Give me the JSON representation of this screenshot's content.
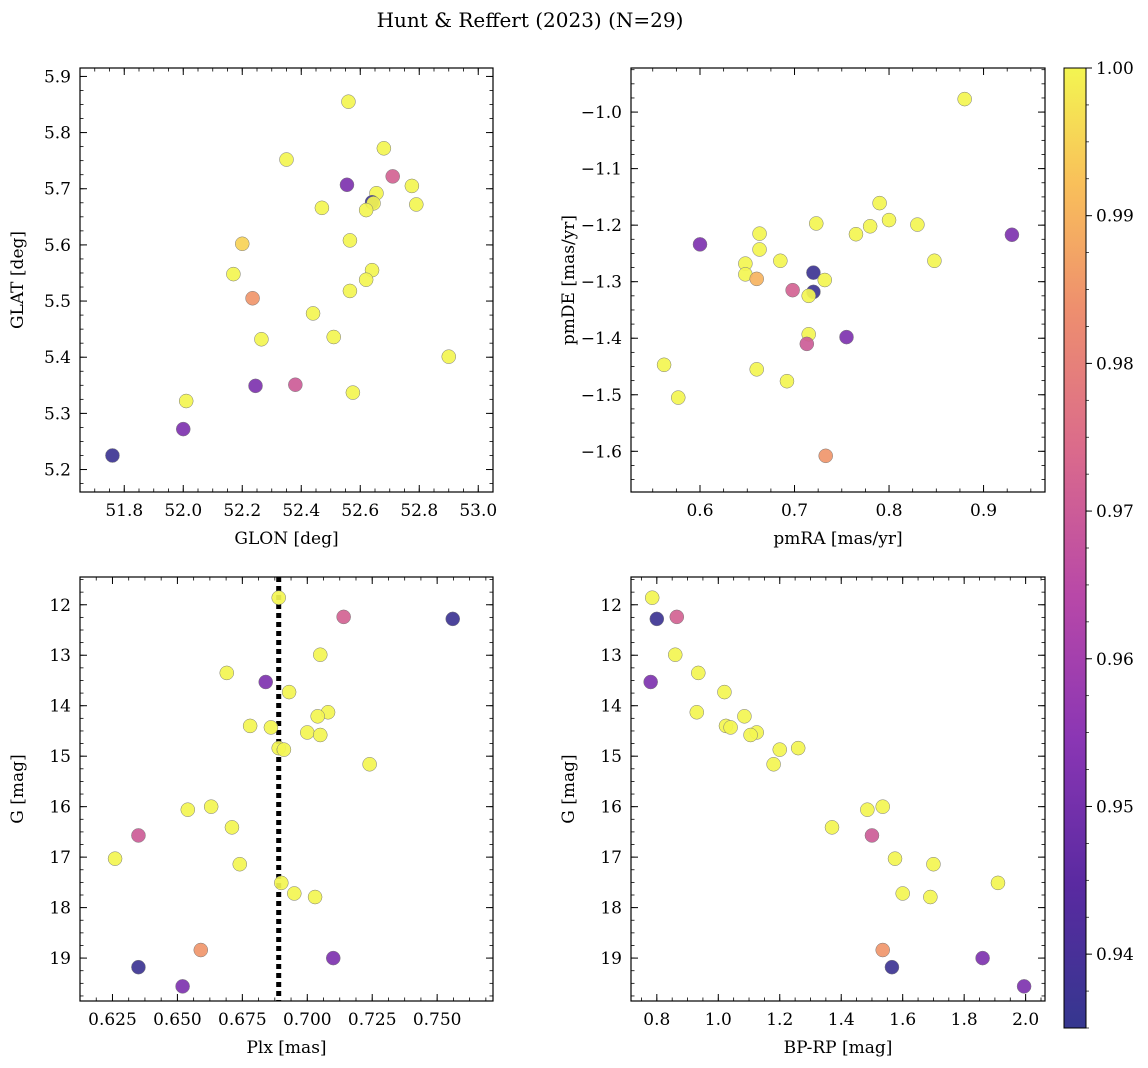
{
  "figure": {
    "title": "Hunt & Reffert (2023) (N=29)"
  },
  "colorbar": {
    "min": 0.935,
    "max": 1.0,
    "ticks": [
      0.94,
      0.95,
      0.96,
      0.97,
      0.98,
      0.99,
      1.0
    ],
    "tick_labels": [
      "0.94",
      "0.95",
      "0.96",
      "0.97",
      "0.98",
      "0.99",
      "1.00"
    ],
    "colormap": "plasma"
  },
  "chart_data": [
    {
      "type": "scatter",
      "id": "glon-glat",
      "xlabel": "GLON [deg]",
      "ylabel": "GLAT [deg]",
      "xlim": [
        51.65,
        53.05
      ],
      "ylim": [
        5.16,
        5.915
      ],
      "xticks": [
        51.8,
        52.0,
        52.2,
        52.4,
        52.6,
        52.8,
        53.0
      ],
      "xtick_labels": [
        "51.8",
        "52.0",
        "52.2",
        "52.4",
        "52.6",
        "52.8",
        "53.0"
      ],
      "yticks": [
        5.2,
        5.3,
        5.4,
        5.5,
        5.6,
        5.7,
        5.8,
        5.9
      ],
      "ytick_labels": [
        "5.2",
        "5.3",
        "5.4",
        "5.5",
        "5.6",
        "5.7",
        "5.8",
        "5.9"
      ],
      "points": [
        [
          52.56,
          5.855,
          1.0
        ],
        [
          52.68,
          5.772,
          1.0
        ],
        [
          52.35,
          5.752,
          1.0
        ],
        [
          52.555,
          5.707,
          0.952
        ],
        [
          52.71,
          5.722,
          0.972
        ],
        [
          52.775,
          5.705,
          1.0
        ],
        [
          52.655,
          5.692,
          1.0
        ],
        [
          52.64,
          5.676,
          0.937
        ],
        [
          52.79,
          5.672,
          1.0
        ],
        [
          52.645,
          5.674,
          1.0
        ],
        [
          52.47,
          5.666,
          1.0
        ],
        [
          52.62,
          5.662,
          1.0
        ],
        [
          52.565,
          5.608,
          1.0
        ],
        [
          52.2,
          5.602,
          0.995
        ],
        [
          52.64,
          5.555,
          1.0
        ],
        [
          52.17,
          5.548,
          1.0
        ],
        [
          52.62,
          5.538,
          1.0
        ],
        [
          52.565,
          5.518,
          1.0
        ],
        [
          52.235,
          5.505,
          0.985
        ],
        [
          52.44,
          5.478,
          1.0
        ],
        [
          52.51,
          5.436,
          1.0
        ],
        [
          52.265,
          5.432,
          1.0
        ],
        [
          52.9,
          5.401,
          1.0
        ],
        [
          52.245,
          5.349,
          0.952
        ],
        [
          52.38,
          5.351,
          0.97
        ],
        [
          52.575,
          5.337,
          1.0
        ],
        [
          52.01,
          5.322,
          1.0
        ],
        [
          52.0,
          5.272,
          0.952
        ],
        [
          51.76,
          5.225,
          0.937
        ]
      ]
    },
    {
      "type": "scatter",
      "id": "pmra-pmde",
      "xlabel": "pmRA [mas/yr]",
      "ylabel": "pmDE [mas/yr]",
      "xlim": [
        0.527,
        0.965
      ],
      "ylim": [
        -1.672,
        -0.922
      ],
      "xticks": [
        0.6,
        0.7,
        0.8,
        0.9
      ],
      "xtick_labels": [
        "0.6",
        "0.7",
        "0.8",
        "0.9"
      ],
      "yticks": [
        -1.6,
        -1.5,
        -1.4,
        -1.3,
        -1.2,
        -1.1,
        -1.0
      ],
      "ytick_labels": [
        "−1.6",
        "−1.5",
        "−1.4",
        "−1.3",
        "−1.2",
        "−1.1",
        "−1.0"
      ],
      "points": [
        [
          0.88,
          -0.977,
          1.0
        ],
        [
          0.79,
          -1.161,
          1.0
        ],
        [
          0.8,
          -1.191,
          1.0
        ],
        [
          0.83,
          -1.199,
          1.0
        ],
        [
          0.78,
          -1.202,
          1.0
        ],
        [
          0.723,
          -1.197,
          1.0
        ],
        [
          0.765,
          -1.216,
          1.0
        ],
        [
          0.93,
          -1.217,
          0.952
        ],
        [
          0.663,
          -1.215,
          1.0
        ],
        [
          0.6,
          -1.234,
          0.952
        ],
        [
          0.663,
          -1.243,
          1.0
        ],
        [
          0.685,
          -1.263,
          1.0
        ],
        [
          0.848,
          -1.263,
          1.0
        ],
        [
          0.648,
          -1.268,
          1.0
        ],
        [
          0.72,
          -1.284,
          0.937
        ],
        [
          0.648,
          -1.287,
          1.0
        ],
        [
          0.66,
          -1.295,
          0.99
        ],
        [
          0.732,
          -1.297,
          1.0
        ],
        [
          0.698,
          -1.315,
          0.972
        ],
        [
          0.72,
          -1.318,
          0.937
        ],
        [
          0.715,
          -1.325,
          1.0
        ],
        [
          0.715,
          -1.393,
          1.0
        ],
        [
          0.755,
          -1.398,
          0.952
        ],
        [
          0.713,
          -1.41,
          0.97
        ],
        [
          0.562,
          -1.447,
          1.0
        ],
        [
          0.66,
          -1.455,
          1.0
        ],
        [
          0.692,
          -1.476,
          1.0
        ],
        [
          0.577,
          -1.505,
          1.0
        ],
        [
          0.733,
          -1.608,
          0.985
        ]
      ]
    },
    {
      "type": "scatter",
      "id": "plx-g",
      "xlabel": "Plx [mas]",
      "ylabel": "G [mag]",
      "xlim": [
        0.6125,
        0.7715
      ],
      "ylim": [
        19.85,
        11.45
      ],
      "yinverted": true,
      "xticks": [
        0.625,
        0.65,
        0.675,
        0.7,
        0.725,
        0.75
      ],
      "xtick_labels": [
        "0.625",
        "0.650",
        "0.675",
        "0.700",
        "0.725",
        "0.750"
      ],
      "yticks": [
        12,
        13,
        14,
        15,
        16,
        17,
        18,
        19
      ],
      "ytick_labels": [
        "12",
        "13",
        "14",
        "15",
        "16",
        "17",
        "18",
        "19"
      ],
      "vline": {
        "x": 0.689,
        "style": "dotted",
        "color": "#000000"
      },
      "points": [
        [
          0.689,
          11.86,
          1.0
        ],
        [
          0.714,
          12.24,
          0.972
        ],
        [
          0.756,
          12.28,
          0.937
        ],
        [
          0.705,
          12.99,
          1.0
        ],
        [
          0.669,
          13.35,
          1.0
        ],
        [
          0.684,
          13.53,
          0.952
        ],
        [
          0.693,
          13.73,
          1.0
        ],
        [
          0.708,
          14.13,
          1.0
        ],
        [
          0.704,
          14.21,
          1.0
        ],
        [
          0.678,
          14.4,
          1.0
        ],
        [
          0.686,
          14.43,
          1.0
        ],
        [
          0.7,
          14.53,
          1.0
        ],
        [
          0.705,
          14.58,
          1.0
        ],
        [
          0.689,
          14.84,
          1.0
        ],
        [
          0.691,
          14.87,
          1.0
        ],
        [
          0.724,
          15.16,
          1.0
        ],
        [
          0.663,
          16.0,
          1.0
        ],
        [
          0.654,
          16.06,
          1.0
        ],
        [
          0.671,
          16.41,
          1.0
        ],
        [
          0.635,
          16.57,
          0.97
        ],
        [
          0.626,
          17.03,
          1.0
        ],
        [
          0.674,
          17.14,
          1.0
        ],
        [
          0.69,
          17.51,
          1.0
        ],
        [
          0.695,
          17.72,
          1.0
        ],
        [
          0.703,
          17.79,
          1.0
        ],
        [
          0.659,
          18.84,
          0.985
        ],
        [
          0.71,
          19.0,
          0.952
        ],
        [
          0.635,
          19.18,
          0.937
        ],
        [
          0.652,
          19.56,
          0.952
        ]
      ]
    },
    {
      "type": "scatter",
      "id": "bprp-g",
      "xlabel": "BP-RP [mag]",
      "ylabel": "G [mag]",
      "xlim": [
        0.716,
        2.063
      ],
      "ylim": [
        19.85,
        11.45
      ],
      "yinverted": true,
      "xticks": [
        0.8,
        1.0,
        1.2,
        1.4,
        1.6,
        1.8,
        2.0
      ],
      "xtick_labels": [
        "0.8",
        "1.0",
        "1.2",
        "1.4",
        "1.6",
        "1.8",
        "2.0"
      ],
      "yticks": [
        12,
        13,
        14,
        15,
        16,
        17,
        18,
        19
      ],
      "ytick_labels": [
        "12",
        "13",
        "14",
        "15",
        "16",
        "17",
        "18",
        "19"
      ],
      "points": [
        [
          0.785,
          11.86,
          1.0
        ],
        [
          0.8,
          12.28,
          0.937
        ],
        [
          0.865,
          12.24,
          0.972
        ],
        [
          0.86,
          12.99,
          1.0
        ],
        [
          0.935,
          13.35,
          1.0
        ],
        [
          0.78,
          13.53,
          0.952
        ],
        [
          1.02,
          13.73,
          1.0
        ],
        [
          0.93,
          14.13,
          1.0
        ],
        [
          1.085,
          14.21,
          1.0
        ],
        [
          1.025,
          14.4,
          1.0
        ],
        [
          1.04,
          14.43,
          1.0
        ],
        [
          1.125,
          14.53,
          1.0
        ],
        [
          1.105,
          14.58,
          1.0
        ],
        [
          1.26,
          14.84,
          1.0
        ],
        [
          1.2,
          14.87,
          1.0
        ],
        [
          1.18,
          15.16,
          1.0
        ],
        [
          1.535,
          16.0,
          1.0
        ],
        [
          1.485,
          16.06,
          1.0
        ],
        [
          1.37,
          16.41,
          1.0
        ],
        [
          1.5,
          16.57,
          0.97
        ],
        [
          1.575,
          17.03,
          1.0
        ],
        [
          1.7,
          17.14,
          1.0
        ],
        [
          1.91,
          17.51,
          1.0
        ],
        [
          1.6,
          17.72,
          1.0
        ],
        [
          1.69,
          17.79,
          1.0
        ],
        [
          1.535,
          18.84,
          0.985
        ],
        [
          1.86,
          19.0,
          0.952
        ],
        [
          1.565,
          19.18,
          0.937
        ],
        [
          1.995,
          19.56,
          0.952
        ]
      ]
    }
  ]
}
